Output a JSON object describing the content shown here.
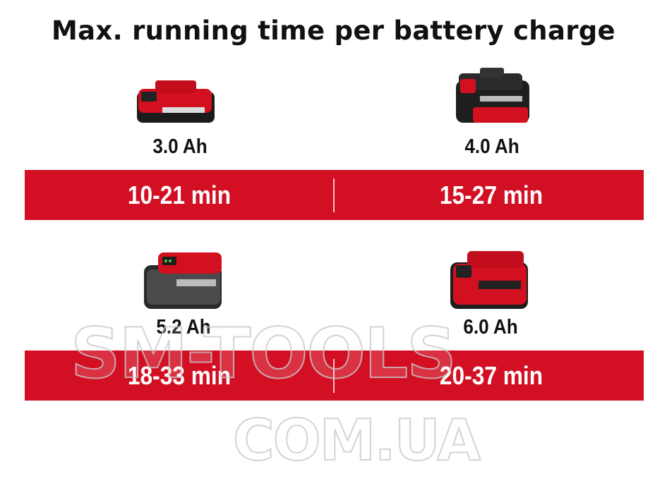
{
  "title": "Max. running time per battery charge",
  "brand_color": "#d30f23",
  "batteries": [
    {
      "capacity": "3.0 Ah",
      "runtime": "10-21 min",
      "icon": "battery-pack-slim-icon"
    },
    {
      "capacity": "4.0 Ah",
      "runtime": "15-27 min",
      "icon": "battery-pack-black-icon"
    },
    {
      "capacity": "5.2 Ah",
      "runtime": "18-33 min",
      "icon": "battery-pack-grey-icon"
    },
    {
      "capacity": "6.0 Ah",
      "runtime": "20-37 min",
      "icon": "battery-pack-red-icon"
    }
  ],
  "watermark": {
    "line1": "SM-TOOLS",
    "line2": "COM.UA"
  }
}
